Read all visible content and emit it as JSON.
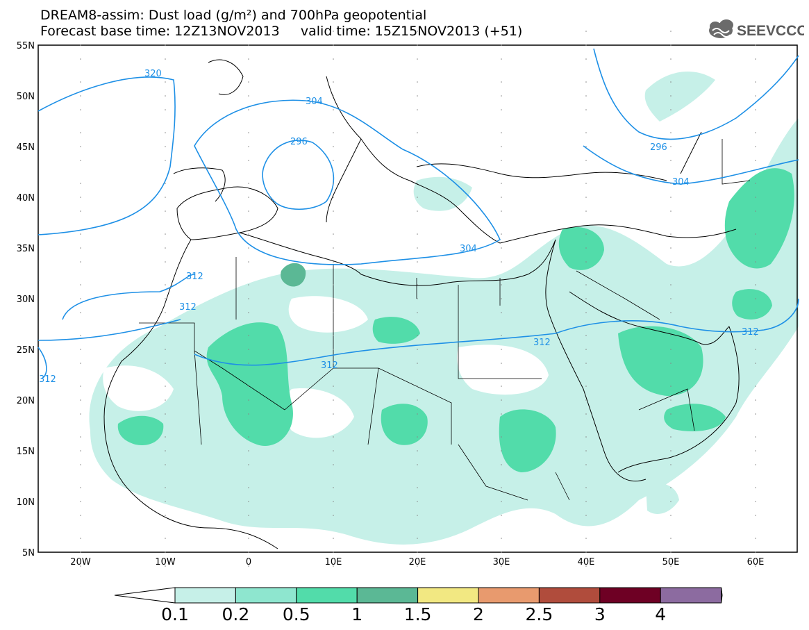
{
  "header": {
    "title_line1": "DREAM8-assim: Dust load (g/m²) and 700hPa geopotential",
    "title_line2": "Forecast base time: 12Z13NOV2013     valid time: 15Z15NOV2013 (+51)",
    "logo_text": "SEEVCCC"
  },
  "map": {
    "lat_labels": [
      "55N",
      "50N",
      "45N",
      "40N",
      "35N",
      "30N",
      "25N",
      "20N",
      "15N",
      "10N",
      "5N"
    ],
    "lon_labels": [
      "20W",
      "10W",
      "0",
      "10E",
      "20E",
      "30E",
      "40E",
      "50E",
      "60E"
    ],
    "contour_labels": [
      "320",
      "304",
      "296",
      "304",
      "296",
      "304",
      "312",
      "312",
      "312",
      "312",
      "312",
      "312"
    ],
    "colors": {
      "frame": "#000000",
      "contour": "#1e90e6",
      "land_border": "#000000"
    }
  },
  "colorbar": {
    "tick_labels": [
      "0.1",
      "0.2",
      "0.5",
      "1",
      "1.5",
      "2",
      "2.5",
      "3",
      "4"
    ],
    "colors": [
      "#c6f0e8",
      "#8ee6cf",
      "#52dcaa",
      "#5bb895",
      "#f2e882",
      "#e89a6e",
      "#b04c3c",
      "#6e0024",
      "#8c6ba0"
    ]
  }
}
